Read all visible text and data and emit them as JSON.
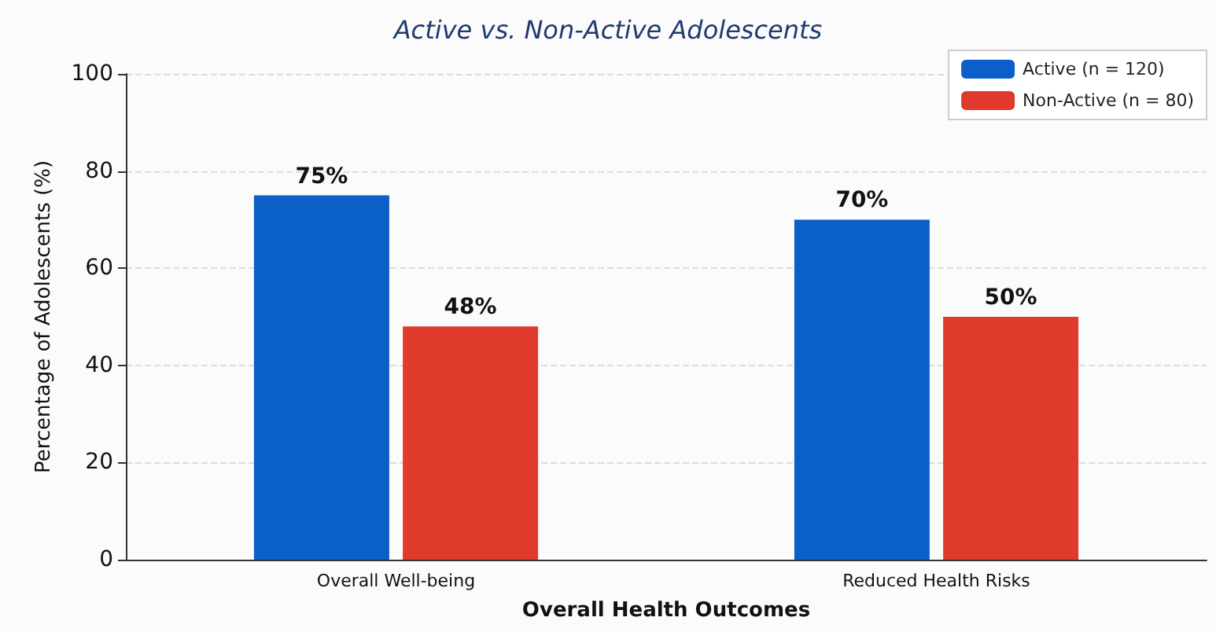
{
  "chart_data": {
    "type": "bar",
    "title": "Active vs. Non-Active Adolescents",
    "xlabel": "Overall Health Outcomes",
    "ylabel": "Percentage of Adolescents (%)",
    "categories": [
      "Overall Well-being",
      "Reduced Health Risks"
    ],
    "series": [
      {
        "name": "Active (n = 120)",
        "color": "#0a5fc8",
        "values": [
          75,
          70
        ],
        "value_labels": [
          "75%",
          "70%"
        ]
      },
      {
        "name": "Non-Active (n = 80)",
        "color": "#e03a2c",
        "values": [
          48,
          50
        ],
        "value_labels": [
          "48%",
          "50%"
        ]
      }
    ],
    "ylim": [
      0,
      100
    ],
    "yticks": [
      0,
      20,
      40,
      60,
      80,
      100
    ],
    "grid": "y",
    "legend": "top right"
  }
}
